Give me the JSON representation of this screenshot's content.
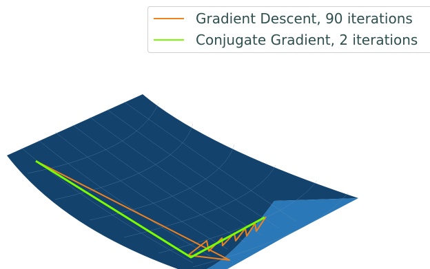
{
  "chart_data": {
    "type": "surface",
    "title": "",
    "surface_colors": {
      "shadow": "#13436d",
      "light": "#2a78b8",
      "grid": "#6f95b7"
    },
    "legend_placement": "top-right",
    "series": [
      {
        "name": "Gradient Descent, 90 iterations",
        "color": "#f0821e"
      },
      {
        "name": "Conjugate Gradient, 2 iterations",
        "color": "#7cfc00"
      }
    ]
  }
}
